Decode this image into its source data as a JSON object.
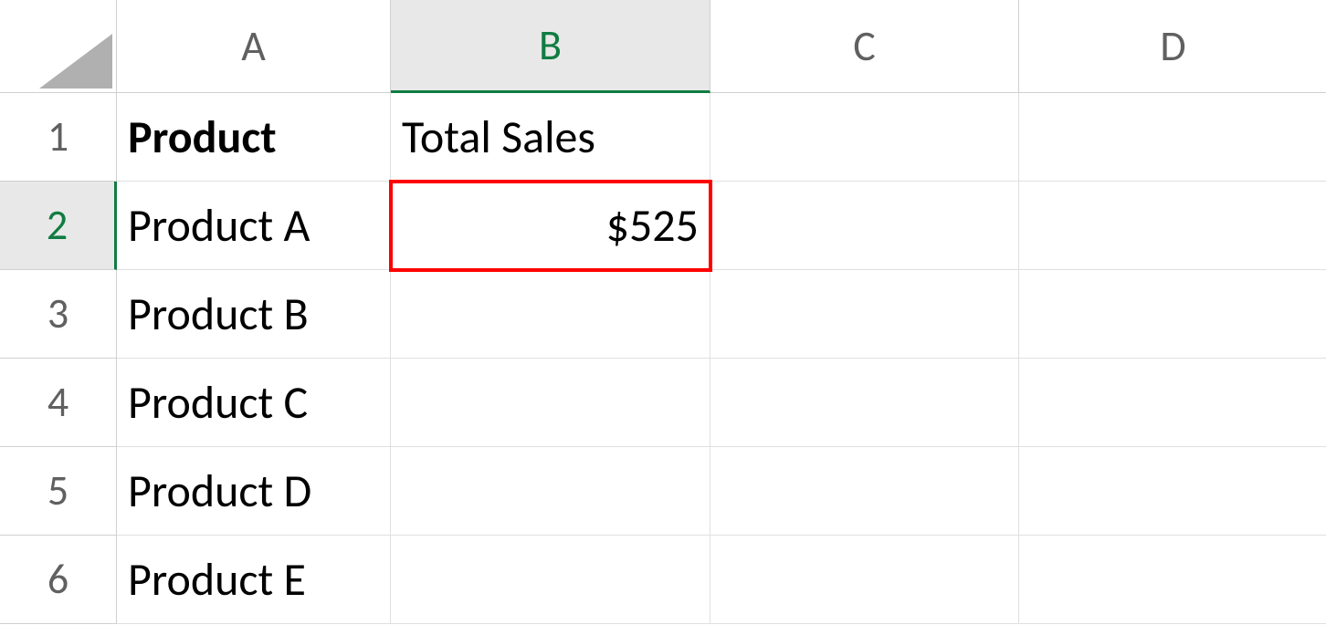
{
  "columns": [
    "A",
    "B",
    "C",
    "D"
  ],
  "rows": [
    "1",
    "2",
    "3",
    "4",
    "5",
    "6"
  ],
  "selected_column_index": 1,
  "selected_row_index": 1,
  "data": {
    "A1": "Product",
    "B1": "Total Sales",
    "A2": "Product A",
    "B2": "$525",
    "A3": "Product B",
    "A4": "Product C",
    "A5": "Product D",
    "A6": "Product E"
  },
  "highlighted_cell": "B2",
  "styles": {
    "header_bg": "#e8e8e8",
    "selected_border": "#107c41",
    "grid_line": "#e0e0e0",
    "header_border": "#d0d0d0",
    "highlight_color": "#ff0000",
    "text_color": "#000000",
    "header_text": "#606060",
    "font_size_cell": 50,
    "font_size_header": 46
  }
}
